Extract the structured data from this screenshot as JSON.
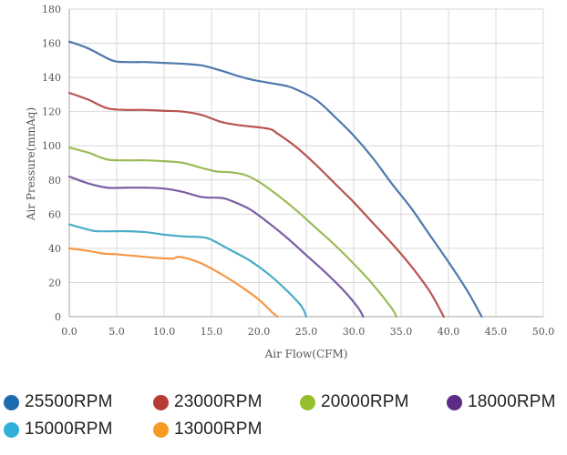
{
  "chart_data": {
    "type": "line",
    "xlabel": "Air Flow(CFM)",
    "ylabel": "Air Pressure(mmAq)",
    "xlim": [
      0,
      50
    ],
    "ylim": [
      0,
      180
    ],
    "x_ticks": [
      "0.0",
      "5.0",
      "10.0",
      "15.0",
      "20.0",
      "25.0",
      "30.0",
      "35.0",
      "40.0",
      "45.0",
      "50.0"
    ],
    "y_ticks": [
      "0",
      "20",
      "40",
      "60",
      "80",
      "100",
      "120",
      "140",
      "160",
      "180"
    ],
    "grid": true,
    "legend_position": "bottom",
    "series": [
      {
        "name": "25500RPM",
        "color": "#4F78AD",
        "legend_color": "#1F6BB0",
        "points": [
          [
            0,
            161
          ],
          [
            2,
            157
          ],
          [
            4.5,
            150
          ],
          [
            6,
            149
          ],
          [
            8,
            149
          ],
          [
            10,
            148.5
          ],
          [
            12,
            148
          ],
          [
            14,
            147
          ],
          [
            16,
            144
          ],
          [
            19,
            139
          ],
          [
            22,
            136
          ],
          [
            23.5,
            134
          ],
          [
            26,
            127
          ],
          [
            28,
            117
          ],
          [
            30,
            106
          ],
          [
            32,
            93
          ],
          [
            34,
            78
          ],
          [
            36,
            64
          ],
          [
            38,
            48
          ],
          [
            40,
            32
          ],
          [
            42,
            15
          ],
          [
            43.5,
            0
          ]
        ]
      },
      {
        "name": "23000RPM",
        "color": "#B85450",
        "legend_color": "#B83C36",
        "points": [
          [
            0,
            131
          ],
          [
            2,
            127
          ],
          [
            4,
            122
          ],
          [
            6,
            121
          ],
          [
            8,
            121
          ],
          [
            10,
            120.5
          ],
          [
            12,
            120
          ],
          [
            14,
            118
          ],
          [
            16,
            114
          ],
          [
            18,
            112
          ],
          [
            21,
            110
          ],
          [
            22,
            107
          ],
          [
            24,
            99
          ],
          [
            26,
            89
          ],
          [
            28,
            78
          ],
          [
            30,
            67
          ],
          [
            32,
            55
          ],
          [
            34,
            43
          ],
          [
            36,
            30
          ],
          [
            38,
            15
          ],
          [
            39.5,
            0
          ]
        ]
      },
      {
        "name": "20000RPM",
        "color": "#9BBB59",
        "legend_color": "#96BF2B",
        "points": [
          [
            0,
            99
          ],
          [
            2,
            96
          ],
          [
            4,
            92
          ],
          [
            6,
            91.5
          ],
          [
            8,
            91.5
          ],
          [
            10,
            91
          ],
          [
            12,
            90
          ],
          [
            14,
            87
          ],
          [
            15.5,
            85
          ],
          [
            17,
            84.5
          ],
          [
            18.5,
            83
          ],
          [
            20,
            79
          ],
          [
            22,
            71
          ],
          [
            24,
            62
          ],
          [
            26,
            52
          ],
          [
            28,
            42
          ],
          [
            30,
            31
          ],
          [
            32,
            19
          ],
          [
            34,
            5
          ],
          [
            34.5,
            0
          ]
        ]
      },
      {
        "name": "18000RPM",
        "color": "#7B5EA3",
        "legend_color": "#5C2B86",
        "points": [
          [
            0,
            82
          ],
          [
            2,
            78
          ],
          [
            4,
            75.5
          ],
          [
            6,
            75.5
          ],
          [
            8,
            75.5
          ],
          [
            10,
            75
          ],
          [
            12,
            73
          ],
          [
            14,
            70
          ],
          [
            16,
            69.5
          ],
          [
            17,
            68
          ],
          [
            19,
            63
          ],
          [
            21,
            55
          ],
          [
            23,
            46
          ],
          [
            25,
            36
          ],
          [
            27,
            26
          ],
          [
            29,
            15
          ],
          [
            30.5,
            5
          ],
          [
            31,
            0
          ]
        ]
      },
      {
        "name": "15000RPM",
        "color": "#4BACC6",
        "legend_color": "#2EB0D8",
        "points": [
          [
            0,
            54
          ],
          [
            2,
            51
          ],
          [
            3,
            50
          ],
          [
            6,
            50
          ],
          [
            8,
            49.5
          ],
          [
            10,
            48
          ],
          [
            12,
            47
          ],
          [
            14,
            46.5
          ],
          [
            15,
            45
          ],
          [
            17,
            39
          ],
          [
            19,
            33
          ],
          [
            21,
            25
          ],
          [
            23,
            15
          ],
          [
            24.5,
            6
          ],
          [
            25,
            0
          ]
        ]
      },
      {
        "name": "13000RPM",
        "color": "#F79646",
        "legend_color": "#F59A22",
        "points": [
          [
            0,
            40
          ],
          [
            2,
            38.5
          ],
          [
            3.5,
            37
          ],
          [
            5,
            36.5
          ],
          [
            7,
            35.5
          ],
          [
            9,
            34.5
          ],
          [
            10.5,
            34
          ],
          [
            11,
            34
          ],
          [
            11.5,
            35
          ],
          [
            12.5,
            34
          ],
          [
            14,
            31
          ],
          [
            16,
            25
          ],
          [
            18,
            18
          ],
          [
            20,
            10
          ],
          [
            21.5,
            2
          ],
          [
            22,
            0
          ]
        ]
      }
    ]
  }
}
